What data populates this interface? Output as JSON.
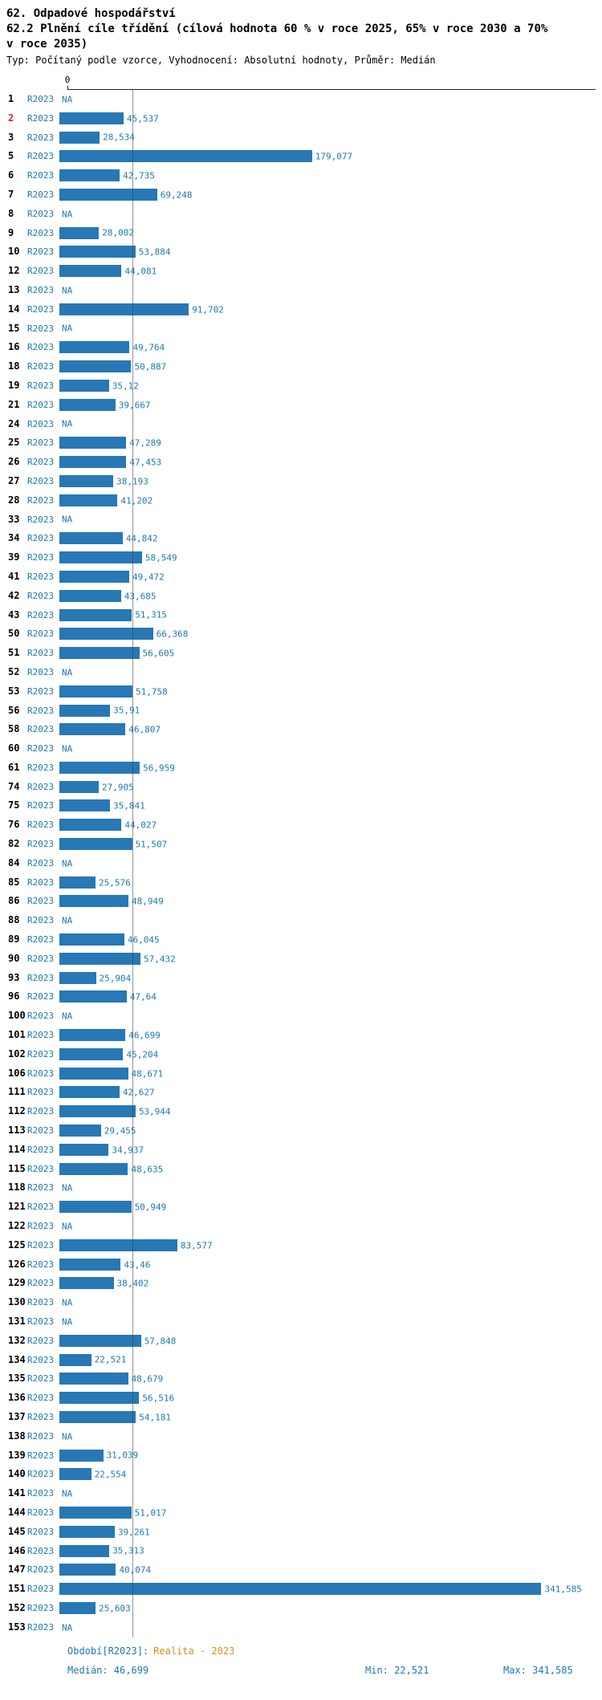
{
  "chart_data": {
    "type": "bar",
    "orientation": "horizontal",
    "title": "62. Odpadové hospodářství",
    "subtitle": "62.2 Plnění cíle třídění (cílová hodnota 60 % v roce 2025, 65% v roce 2030 a 70% v roce 2035)",
    "settings_line": "Typ: Počítaný podle vzorce, Vyhodnocení: Absolutní hodnoty, Průměr: Medián",
    "series_name": "R2023",
    "zero_tick_label": "0",
    "na_label": "NA",
    "xlim": [
      0,
      380
    ],
    "median_value": 46.699,
    "grid": false,
    "colors": {
      "bar": "#2778b5",
      "text_blue": "#1f77b4",
      "highlight_red": "#d62728",
      "period_orange": "#e08c1e"
    },
    "rows": [
      {
        "id": "1",
        "value": null,
        "label": "NA"
      },
      {
        "id": "2",
        "value": 45.537,
        "label": "45,537",
        "red": true
      },
      {
        "id": "3",
        "value": 28.534,
        "label": "28,534"
      },
      {
        "id": "5",
        "value": 179.077,
        "label": "179,077"
      },
      {
        "id": "6",
        "value": 42.735,
        "label": "42,735"
      },
      {
        "id": "7",
        "value": 69.248,
        "label": "69,248"
      },
      {
        "id": "8",
        "value": null,
        "label": "NA"
      },
      {
        "id": "9",
        "value": 28.002,
        "label": "28,002"
      },
      {
        "id": "10",
        "value": 53.884,
        "label": "53,884"
      },
      {
        "id": "12",
        "value": 44.081,
        "label": "44,081"
      },
      {
        "id": "13",
        "value": null,
        "label": "NA"
      },
      {
        "id": "14",
        "value": 91.702,
        "label": "91,702"
      },
      {
        "id": "15",
        "value": null,
        "label": "NA"
      },
      {
        "id": "16",
        "value": 49.764,
        "label": "49,764"
      },
      {
        "id": "18",
        "value": 50.887,
        "label": "50,887"
      },
      {
        "id": "19",
        "value": 35.12,
        "label": "35,12"
      },
      {
        "id": "21",
        "value": 39.667,
        "label": "39,667"
      },
      {
        "id": "24",
        "value": null,
        "label": "NA"
      },
      {
        "id": "25",
        "value": 47.289,
        "label": "47,289"
      },
      {
        "id": "26",
        "value": 47.453,
        "label": "47,453"
      },
      {
        "id": "27",
        "value": 38.193,
        "label": "38,193"
      },
      {
        "id": "28",
        "value": 41.202,
        "label": "41,202"
      },
      {
        "id": "33",
        "value": null,
        "label": "NA"
      },
      {
        "id": "34",
        "value": 44.842,
        "label": "44,842"
      },
      {
        "id": "39",
        "value": 58.549,
        "label": "58,549"
      },
      {
        "id": "41",
        "value": 49.472,
        "label": "49,472"
      },
      {
        "id": "42",
        "value": 43.685,
        "label": "43,685"
      },
      {
        "id": "43",
        "value": 51.315,
        "label": "51,315"
      },
      {
        "id": "50",
        "value": 66.368,
        "label": "66,368"
      },
      {
        "id": "51",
        "value": 56.605,
        "label": "56,605"
      },
      {
        "id": "52",
        "value": null,
        "label": "NA"
      },
      {
        "id": "53",
        "value": 51.758,
        "label": "51,758"
      },
      {
        "id": "56",
        "value": 35.91,
        "label": "35,91"
      },
      {
        "id": "58",
        "value": 46.807,
        "label": "46,807"
      },
      {
        "id": "60",
        "value": null,
        "label": "NA"
      },
      {
        "id": "61",
        "value": 56.959,
        "label": "56,959"
      },
      {
        "id": "74",
        "value": 27.905,
        "label": "27,905"
      },
      {
        "id": "75",
        "value": 35.841,
        "label": "35,841"
      },
      {
        "id": "76",
        "value": 44.027,
        "label": "44,027"
      },
      {
        "id": "82",
        "value": 51.507,
        "label": "51,507"
      },
      {
        "id": "84",
        "value": null,
        "label": "NA"
      },
      {
        "id": "85",
        "value": 25.576,
        "label": "25,576"
      },
      {
        "id": "86",
        "value": 48.949,
        "label": "48,949"
      },
      {
        "id": "88",
        "value": null,
        "label": "NA"
      },
      {
        "id": "89",
        "value": 46.045,
        "label": "46,045"
      },
      {
        "id": "90",
        "value": 57.432,
        "label": "57,432"
      },
      {
        "id": "93",
        "value": 25.904,
        "label": "25,904"
      },
      {
        "id": "96",
        "value": 47.64,
        "label": "47,64"
      },
      {
        "id": "100",
        "value": null,
        "label": "NA"
      },
      {
        "id": "101",
        "value": 46.699,
        "label": "46,699"
      },
      {
        "id": "102",
        "value": 45.204,
        "label": "45,204"
      },
      {
        "id": "106",
        "value": 48.671,
        "label": "48,671"
      },
      {
        "id": "111",
        "value": 42.627,
        "label": "42,627"
      },
      {
        "id": "112",
        "value": 53.944,
        "label": "53,944"
      },
      {
        "id": "113",
        "value": 29.455,
        "label": "29,455"
      },
      {
        "id": "114",
        "value": 34.937,
        "label": "34,937"
      },
      {
        "id": "115",
        "value": 48.635,
        "label": "48,635"
      },
      {
        "id": "118",
        "value": null,
        "label": "NA"
      },
      {
        "id": "121",
        "value": 50.949,
        "label": "50,949"
      },
      {
        "id": "122",
        "value": null,
        "label": "NA"
      },
      {
        "id": "125",
        "value": 83.577,
        "label": "83,577"
      },
      {
        "id": "126",
        "value": 43.46,
        "label": "43,46"
      },
      {
        "id": "129",
        "value": 38.402,
        "label": "38,402"
      },
      {
        "id": "130",
        "value": null,
        "label": "NA"
      },
      {
        "id": "131",
        "value": null,
        "label": "NA"
      },
      {
        "id": "132",
        "value": 57.848,
        "label": "57,848"
      },
      {
        "id": "134",
        "value": 22.521,
        "label": "22,521"
      },
      {
        "id": "135",
        "value": 48.679,
        "label": "48,679"
      },
      {
        "id": "136",
        "value": 56.516,
        "label": "56,516"
      },
      {
        "id": "137",
        "value": 54.181,
        "label": "54,181"
      },
      {
        "id": "138",
        "value": null,
        "label": "NA"
      },
      {
        "id": "139",
        "value": 31.039,
        "label": "31,039"
      },
      {
        "id": "140",
        "value": 22.554,
        "label": "22,554"
      },
      {
        "id": "141",
        "value": null,
        "label": "NA"
      },
      {
        "id": "144",
        "value": 51.017,
        "label": "51,017"
      },
      {
        "id": "145",
        "value": 39.261,
        "label": "39,261"
      },
      {
        "id": "146",
        "value": 35.313,
        "label": "35,313"
      },
      {
        "id": "147",
        "value": 40.074,
        "label": "40,074"
      },
      {
        "id": "151",
        "value": 341.585,
        "label": "341,585"
      },
      {
        "id": "152",
        "value": 25.603,
        "label": "25,603"
      },
      {
        "id": "153",
        "value": null,
        "label": "NA"
      }
    ],
    "footer": {
      "period_label": "Období[R2023]:",
      "period_value": "Realita - 2023",
      "median_text": "Medián: 46,699",
      "min_text": "Min: 22,521",
      "max_text": "Max: 341,585"
    }
  }
}
